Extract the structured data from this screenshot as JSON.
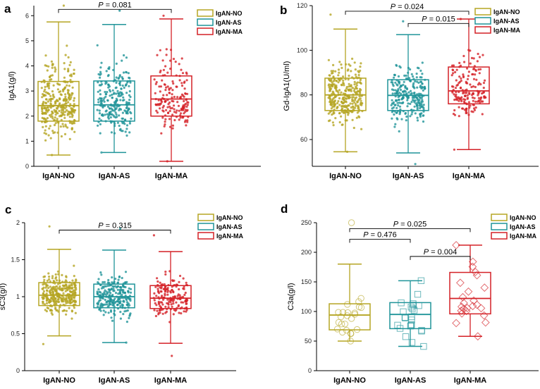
{
  "colors": {
    "NO": "#b5a523",
    "AS": "#1f9499",
    "MA": "#d42127"
  },
  "chart_data": [
    {
      "panel": "a",
      "type": "box",
      "ylabel": "IgA1(g/l)",
      "ylim": [
        0,
        6.4
      ],
      "yticks": [
        {
          "v": 0,
          "t": "0"
        },
        {
          "v": 1,
          "t": "1"
        },
        {
          "v": 2,
          "t": "2"
        },
        {
          "v": 3,
          "t": "3"
        },
        {
          "v": 4,
          "t": "4"
        },
        {
          "v": 5,
          "t": "5"
        },
        {
          "v": 6,
          "t": "6"
        }
      ],
      "categories": [
        "IgAN-NO",
        "IgAN-AS",
        "IgAN-MA"
      ],
      "legend": [
        "IgAN-NO",
        "IgAN-AS",
        "IgAN-MA"
      ],
      "marker": "dot",
      "groups": [
        {
          "name": "IgAN-NO",
          "color": "NO",
          "min": 0.45,
          "q1": 1.8,
          "median": 2.42,
          "q3": 3.38,
          "max": 5.75,
          "n": 320,
          "ptmin": 0.45,
          "ptmax": 6.4
        },
        {
          "name": "IgAN-AS",
          "color": "AS",
          "min": 0.55,
          "q1": 1.8,
          "median": 2.45,
          "q3": 3.4,
          "max": 5.65,
          "n": 250,
          "ptmin": 0.55,
          "ptmax": 6.2
        },
        {
          "name": "IgAN-MA",
          "color": "MA",
          "min": 0.2,
          "q1": 2.0,
          "median": 2.68,
          "q3": 3.6,
          "max": 5.87,
          "n": 170,
          "ptmin": 0.2,
          "ptmax": 6.0
        }
      ],
      "comparisons": [
        {
          "from": 0,
          "to": 2,
          "y": 6.25,
          "label": "P = 0.081",
          "p": "P",
          "rest": " = 0.081"
        }
      ]
    },
    {
      "panel": "b",
      "type": "box",
      "ylabel": "Gd-IgA1(U/ml)",
      "ylim": [
        48,
        120
      ],
      "yticks": [
        {
          "v": 60,
          "t": "60"
        },
        {
          "v": 80,
          "t": "80"
        },
        {
          "v": 100,
          "t": "100"
        },
        {
          "v": 120,
          "t": "120"
        }
      ],
      "categories": [
        "IgAN-NO",
        "IgAN-AS",
        "IgAN-MA"
      ],
      "legend": [
        "IgAN-NO",
        "IgAN-AS",
        "IgAN-MA"
      ],
      "marker": "dot",
      "groups": [
        {
          "name": "IgAN-NO",
          "color": "NO",
          "min": 54.5,
          "q1": 73,
          "median": 80,
          "q3": 87.5,
          "max": 109.5,
          "n": 320,
          "ptmin": 54.5,
          "ptmax": 116
        },
        {
          "name": "IgAN-AS",
          "color": "AS",
          "min": 54,
          "q1": 73,
          "median": 79.8,
          "q3": 86.8,
          "max": 107,
          "n": 250,
          "ptmin": 49,
          "ptmax": 113
        },
        {
          "name": "IgAN-MA",
          "color": "MA",
          "min": 55.5,
          "q1": 76,
          "median": 81.8,
          "q3": 92.5,
          "max": 114,
          "n": 170,
          "ptmin": 55.5,
          "ptmax": 114
        }
      ],
      "comparisons": [
        {
          "from": 0,
          "to": 2,
          "y": 117.5,
          "label": "P = 0.024",
          "p": "P",
          "rest": " = 0.024"
        },
        {
          "from": 1,
          "to": 2,
          "y": 112,
          "label": "P = 0.015",
          "p": "P",
          "rest": " = 0.015"
        }
      ]
    },
    {
      "panel": "c",
      "type": "box",
      "ylabel": "sC3(g/l)",
      "ylim": [
        0,
        2
      ],
      "yticks": [
        {
          "v": 0,
          "t": "0"
        },
        {
          "v": 0.5,
          "t": "0.5"
        },
        {
          "v": 1,
          "t": "1"
        },
        {
          "v": 1.5,
          "t": "1.5"
        },
        {
          "v": 2,
          "t": "2"
        }
      ],
      "categories": [
        "IgAN-NO",
        "IgAN-AS",
        "IgAN-MA"
      ],
      "legend": [
        "IgAN-NO",
        "IgAN-AS",
        "IgAN-MA"
      ],
      "marker": "dot",
      "groups": [
        {
          "name": "IgAN-NO",
          "color": "NO",
          "min": 0.47,
          "q1": 0.88,
          "median": 1.02,
          "q3": 1.19,
          "max": 1.64,
          "n": 320,
          "ptmin": 0.36,
          "ptmax": 1.95
        },
        {
          "name": "IgAN-AS",
          "color": "AS",
          "min": 0.38,
          "q1": 0.85,
          "median": 1.0,
          "q3": 1.17,
          "max": 1.63,
          "n": 250,
          "ptmin": 0.38,
          "ptmax": 1.92
        },
        {
          "name": "IgAN-MA",
          "color": "MA",
          "min": 0.37,
          "q1": 0.84,
          "median": 0.98,
          "q3": 1.15,
          "max": 1.61,
          "n": 170,
          "ptmin": 0.2,
          "ptmax": 1.83
        }
      ],
      "comparisons": [
        {
          "from": 0,
          "to": 2,
          "y": 1.9,
          "label": "P = 0.315",
          "p": "P",
          "rest": " = 0.315"
        }
      ]
    },
    {
      "panel": "d",
      "type": "box",
      "ylabel": "C3a(g/l)",
      "ylim": [
        0,
        250
      ],
      "yticks": [
        {
          "v": 0,
          "t": "0"
        },
        {
          "v": 50,
          "t": "50"
        },
        {
          "v": 100,
          "t": "100"
        },
        {
          "v": 150,
          "t": "150"
        },
        {
          "v": 200,
          "t": "200"
        },
        {
          "v": 250,
          "t": "250"
        }
      ],
      "categories": [
        "IgAN-NO",
        "IgAN-AS",
        "IgAN-MA"
      ],
      "legend": [
        "IgAN-NO",
        "IgAN-AS",
        "IgAN-MA"
      ],
      "marker": "shape",
      "groups": [
        {
          "name": "IgAN-NO",
          "color": "NO",
          "shape": "circle",
          "min": 50,
          "q1": 69,
          "median": 94,
          "q3": 113,
          "max": 180,
          "n": 24,
          "ptmin": 50,
          "ptmax": 250
        },
        {
          "name": "IgAN-AS",
          "color": "AS",
          "shape": "square",
          "min": 41,
          "q1": 71,
          "median": 95,
          "q3": 115,
          "max": 152,
          "n": 24,
          "ptmin": 41,
          "ptmax": 152
        },
        {
          "name": "IgAN-MA",
          "color": "MA",
          "shape": "diamond",
          "min": 58,
          "q1": 96,
          "median": 122,
          "q3": 166,
          "max": 212,
          "n": 24,
          "ptmin": 58,
          "ptmax": 212
        }
      ],
      "comparisons": [
        {
          "from": 0,
          "to": 2,
          "y": 240,
          "label": "P = 0.025",
          "p": "P",
          "rest": " = 0.025"
        },
        {
          "from": 0,
          "to": 1,
          "y": 222,
          "label": "P = 0.476",
          "p": "P",
          "rest": " = 0.476"
        },
        {
          "from": 1,
          "to": 2,
          "y": 193,
          "label": "P = 0.004",
          "p": "P",
          "rest": " = 0.004"
        }
      ]
    }
  ]
}
